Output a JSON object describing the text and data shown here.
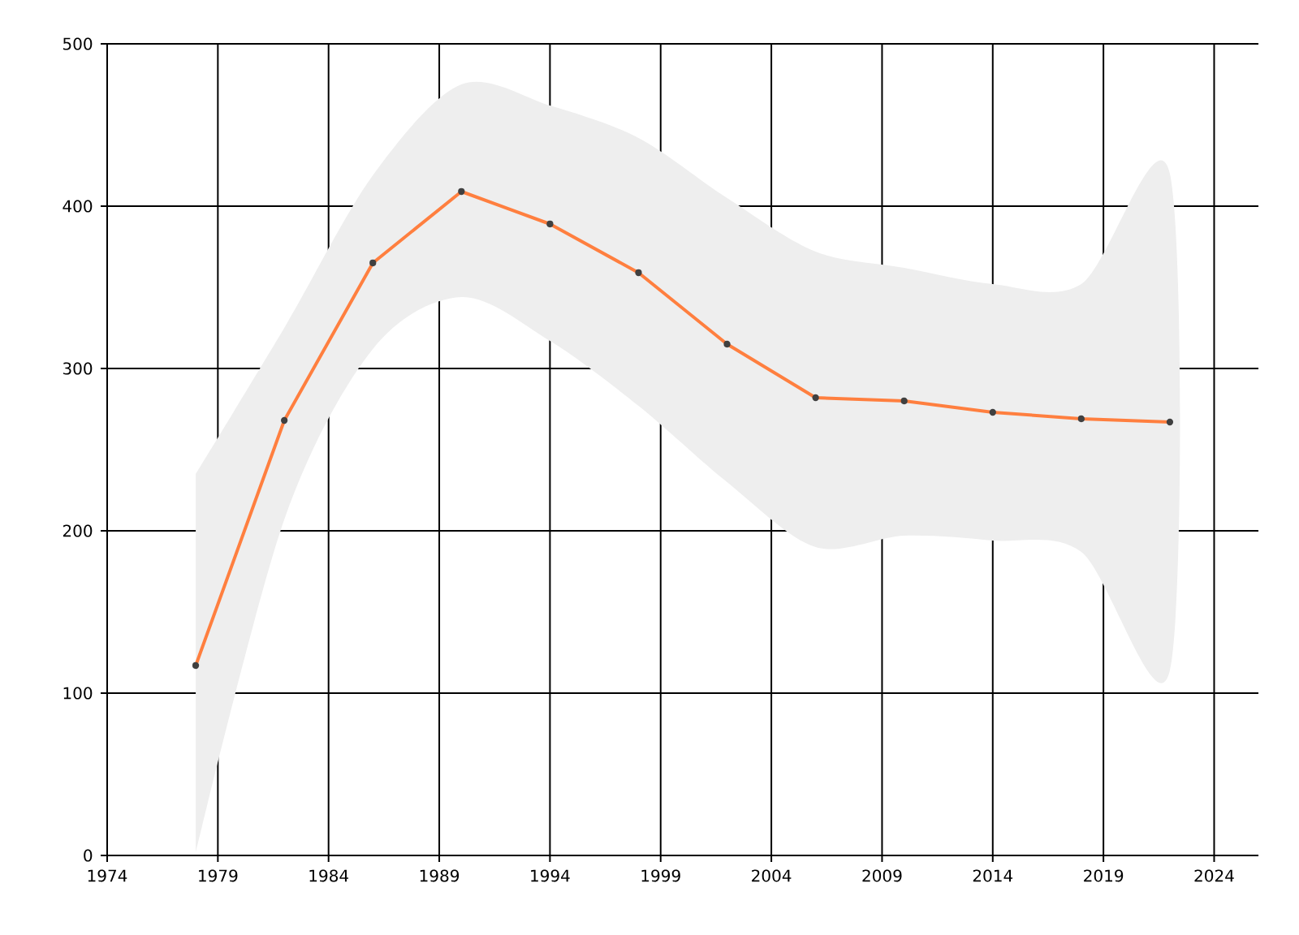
{
  "chart_data": {
    "type": "line",
    "x": [
      1978,
      1982,
      1986,
      1990,
      1994,
      1998,
      2002,
      2006,
      2010,
      2014,
      2018,
      2022
    ],
    "series": [
      {
        "color": "#ff7f3f",
        "values": [
          117,
          268,
          365,
          409,
          389,
          359,
          315,
          282,
          280,
          273,
          269,
          267
        ],
        "lower": [
          2,
          207,
          312,
          344,
          317,
          277,
          230,
          190,
          197,
          194,
          187,
          114
        ],
        "upper": [
          235,
          325,
          419,
          475,
          462,
          442,
          405,
          372,
          362,
          352,
          352,
          420
        ]
      }
    ],
    "xlim": [
      1974,
      2026
    ],
    "ylim": [
      0,
      500
    ],
    "xticks": [
      1974,
      1979,
      1984,
      1989,
      1994,
      1999,
      2004,
      2009,
      2014,
      2019,
      2024
    ],
    "yticks": [
      0,
      100,
      200,
      300,
      400,
      500
    ],
    "grid": true,
    "marker": "circle",
    "line_style": "solid"
  }
}
